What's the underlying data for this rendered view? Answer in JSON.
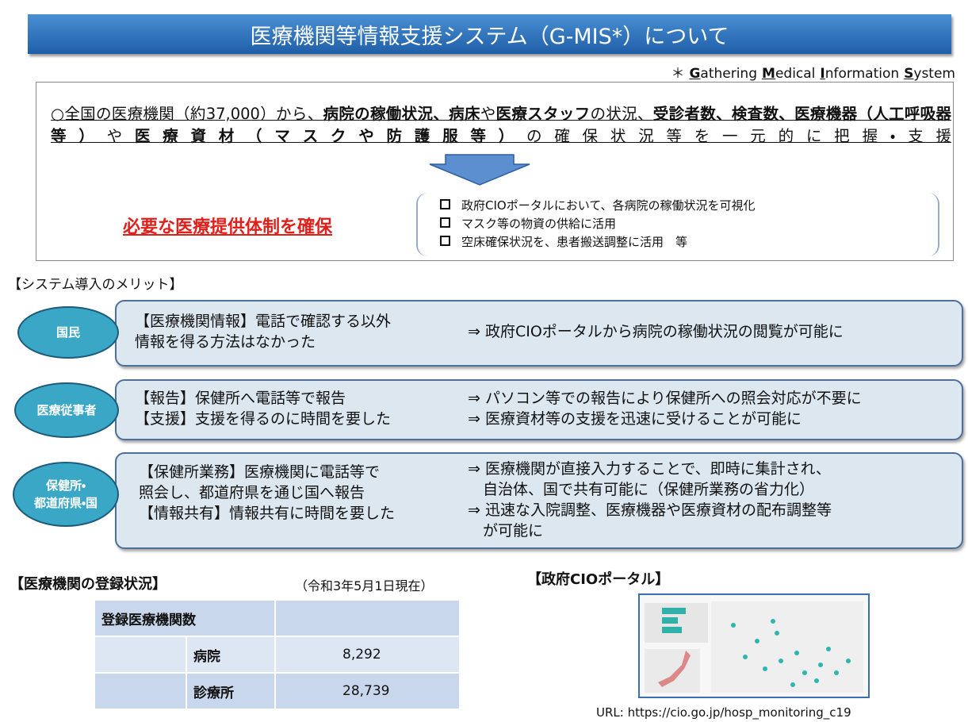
{
  "header": {
    "title": "医療機関等情報支援システム（G-MIS*）について",
    "footnote": [
      "＊",
      "Gathering",
      "Medical",
      "Information",
      "System"
    ]
  },
  "summary": {
    "segments": [
      {
        "text": "○全国の医療機関（約37,000）から、",
        "bold": false
      },
      {
        "text": "病院の稼働状況、病床",
        "bold": true
      },
      {
        "text": "や",
        "bold": false
      },
      {
        "text": "医療スタッフ",
        "bold": true
      },
      {
        "text": "の状況、",
        "bold": false
      },
      {
        "text": "受診者数、検査数、医療機器（人工呼吸器等）",
        "bold": true
      },
      {
        "text": "や",
        "bold": false
      },
      {
        "text": "医療資材（マスクや防護服等）",
        "bold": true
      },
      {
        "text": "の確保状況等を一元的に把握・支援",
        "bold": false
      }
    ],
    "outcome": "必要な医療提供体制を確保",
    "bullets": [
      "政府CIOポータルにおいて、各病院の稼働状況を可視化",
      "マスク等の物資の供給に活用",
      "空床確保状況を、患者搬送調整に活用　等"
    ]
  },
  "merits": {
    "heading": "【システム導入のメリット】",
    "rows": [
      {
        "label": [
          "国民"
        ],
        "before": [
          "【医療機関情報】電話で確認する以外",
          "情報を得る方法はなかった"
        ],
        "after": [
          "⇒ 政府CIOポータルから病院の稼働状況の閲覧が可能に"
        ]
      },
      {
        "label": [
          "医療従事者"
        ],
        "before": [
          "【報告】保健所へ電話等で報告",
          "【支援】支援を得るのに時間を要した"
        ],
        "after": [
          "⇒ パソコン等での報告により保健所への照会対応が不要に",
          "⇒ 医療資材等の支援を迅速に受けることが可能に"
        ]
      },
      {
        "label": [
          "保健所・",
          "都道府県・国"
        ],
        "before": [
          "【保健所業務】医療機関に電話等で",
          "照会し、都道府県を通じ国へ報告",
          "【情報共有】情報共有に時間を要した"
        ],
        "after": [
          "⇒ 医療機関が直接入力することで、即時に集計され、",
          "　自治体、国で共有可能に（保健所業務の省力化）",
          "⇒ 迅速な入院調整、医療機器や医療資材の配布調整等",
          "　が可能に"
        ]
      }
    ]
  },
  "registration": {
    "heading": "【医療機関の登録状況】",
    "date": "（令和3年5月1日現在）",
    "table": {
      "header": "登録医療機関数",
      "rows": [
        [
          "病院",
          "8,292"
        ],
        [
          "診療所",
          "28,739"
        ]
      ]
    }
  },
  "portal": {
    "heading": "【政府CIOポータル】",
    "url": "URL:  https://cio.go.jp/hosp_monitoring_c19"
  }
}
